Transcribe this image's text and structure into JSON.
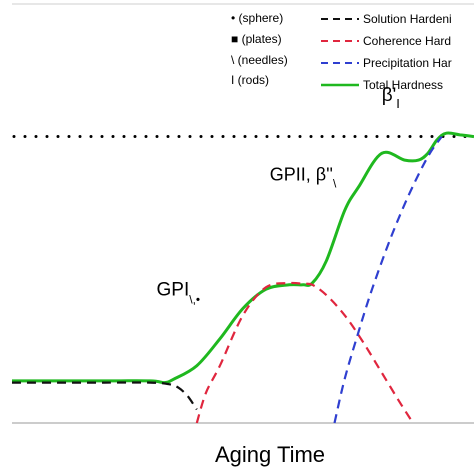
{
  "chart_data": {
    "type": "line",
    "xlabel": "Aging Time",
    "ylabel": "",
    "x_ticks_labeled": false,
    "y_ticks_labeled": false,
    "grid": false,
    "legend_placement": "top-right",
    "xlim": [
      0,
      100
    ],
    "ylim": [
      0,
      100
    ],
    "colors": {
      "solution": "#111111",
      "coherence": "#e0263e",
      "precipitation": "#2f3fd0",
      "total": "#1fb81f",
      "peak": "#000000"
    },
    "legend": {
      "shapes": [
        "• (sphere)",
        "■ (plates)",
        "\\ (needles)",
        "I (rods)"
      ],
      "series": [
        "Solution Hardeni",
        "Coherence Hard",
        "Precipitation Har",
        "Total Hardness"
      ]
    },
    "annotations": {
      "gp1": {
        "main": "GPI",
        "sub": "\\,•",
        "x": 36,
        "y": 37.8
      },
      "gp2": {
        "main": "GPII, β''",
        "sub": "\\",
        "x": 63,
        "y": 72
      },
      "beta_prime": {
        "main": "β'",
        "sub": "I",
        "x": 82,
        "y": 95.5
      }
    },
    "peak_level": 85,
    "series": [
      {
        "name": "Solution Hardeni",
        "style": "dashed",
        "x": [
          0,
          10,
          20,
          30,
          34,
          36,
          38,
          40
        ],
        "y": [
          12,
          12,
          12,
          12,
          11.5,
          10.5,
          8,
          4
        ]
      },
      {
        "name": "Coherence Hard",
        "style": "dashed",
        "x": [
          40,
          42,
          45,
          50,
          55,
          60,
          63,
          65,
          68,
          72,
          76,
          80,
          84,
          86.8
        ],
        "y": [
          0,
          9,
          17,
          32,
          40.3,
          41.5,
          41.3,
          41,
          38,
          32,
          24,
          15,
          6,
          0
        ]
      },
      {
        "name": "Precipitation Har",
        "style": "dashed",
        "x": [
          69.8,
          72,
          75,
          78,
          82,
          86,
          90,
          93
        ],
        "y": [
          0,
          13,
          27,
          40,
          55,
          68,
          79,
          85
        ]
      },
      {
        "name": "Total Hardness",
        "style": "solid",
        "x": [
          0,
          10,
          20,
          30,
          33,
          35,
          40,
          45,
          50,
          55,
          60,
          63,
          65,
          68,
          72,
          75,
          80,
          85,
          88,
          90,
          92,
          94,
          97,
          100
        ],
        "y": [
          12.5,
          12.5,
          12.5,
          12.5,
          12,
          13,
          17,
          25,
          34,
          39.7,
          41,
          41,
          41.5,
          48,
          63,
          70,
          80,
          78,
          78,
          80,
          84,
          86,
          85.5,
          85
        ]
      }
    ]
  }
}
